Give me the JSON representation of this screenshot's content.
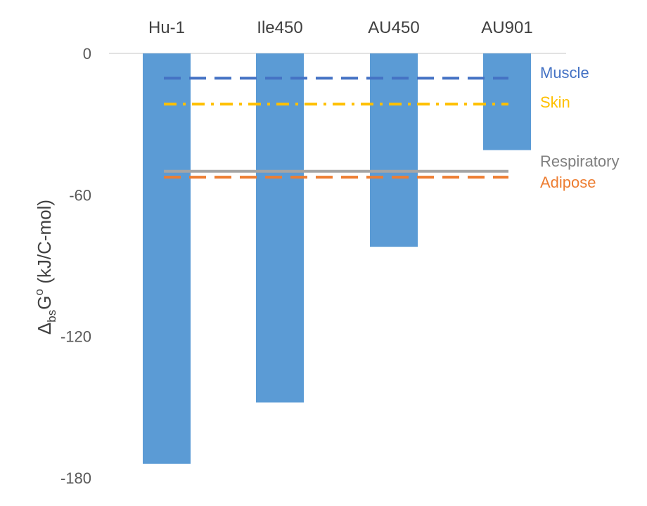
{
  "chart_data": {
    "type": "bar",
    "categories": [
      "Hu-1",
      "Ile450",
      "AU450",
      "AU901"
    ],
    "values": [
      -174,
      -148,
      -82,
      -41
    ],
    "bar_color": "#5B9BD5",
    "ylim": [
      -180,
      0
    ],
    "yticks": [
      0,
      -60,
      -120,
      -180
    ],
    "ytick_labels": [
      "0",
      "-60",
      "-120",
      "-180"
    ],
    "ylabel": {
      "symbol": "Δ",
      "sub": "bs",
      "main": "G",
      "sup": "o",
      "rest": " (kJ/C-mol)"
    },
    "grid": false,
    "reference_lines": [
      {
        "name": "Muscle",
        "value": -10.5,
        "color": "#4472C4",
        "style": "dashed"
      },
      {
        "name": "Skin",
        "value": -21.5,
        "color": "#FFC000",
        "style": "dash-dot"
      },
      {
        "name": "Respiratory",
        "value": -50,
        "color": "#A5A5A5",
        "style": "solid"
      },
      {
        "name": "Adipose",
        "value": -52.5,
        "color": "#ED7D31",
        "style": "dashed"
      }
    ]
  }
}
